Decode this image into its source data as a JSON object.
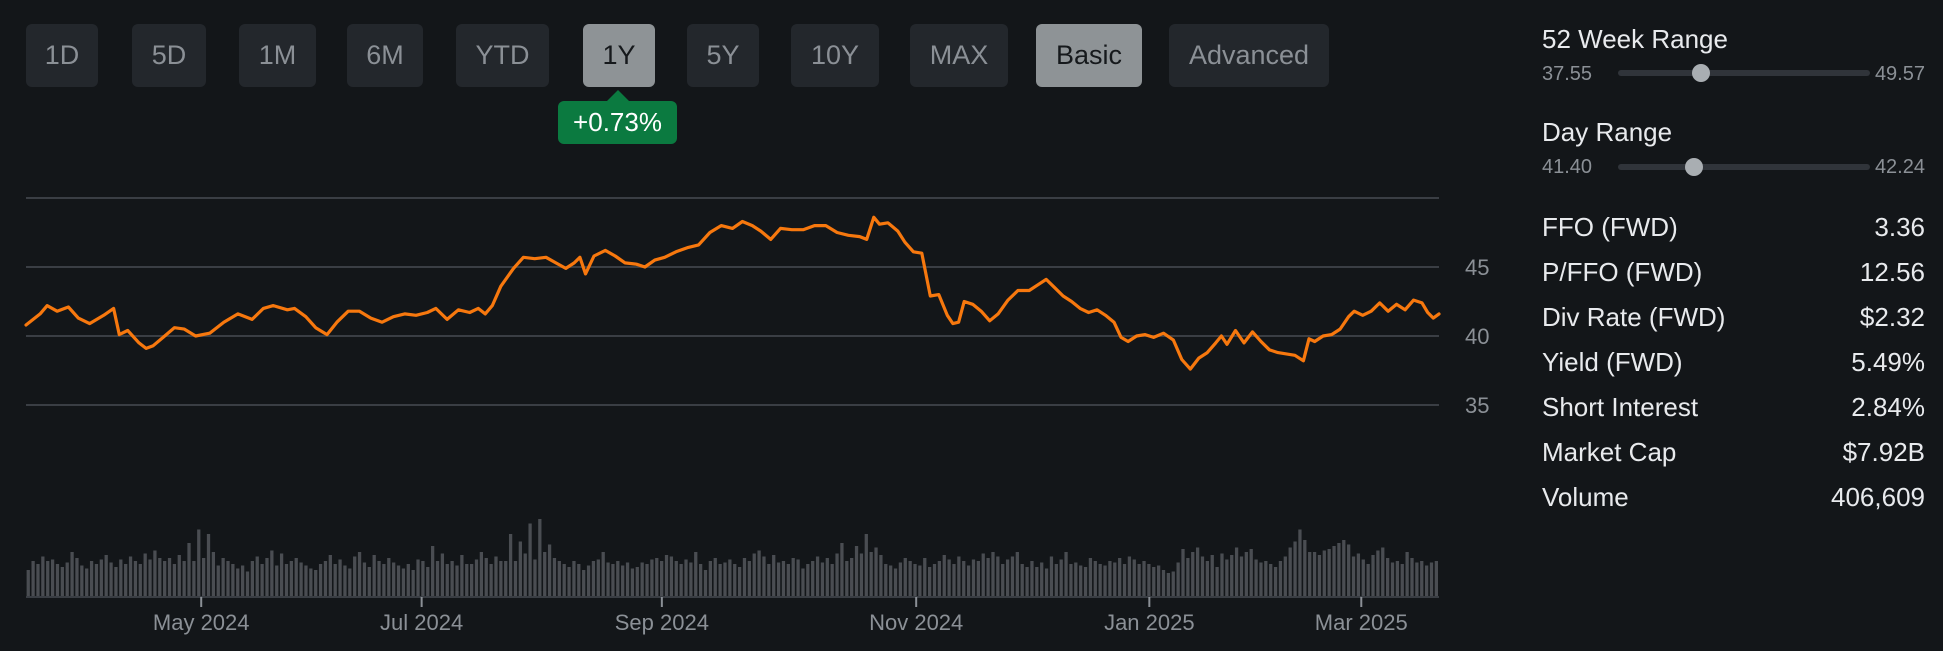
{
  "period_tabs": [
    {
      "label": "1D",
      "active": false
    },
    {
      "label": "5D",
      "active": false
    },
    {
      "label": "1M",
      "active": false
    },
    {
      "label": "6M",
      "active": false
    },
    {
      "label": "YTD",
      "active": false
    },
    {
      "label": "1Y",
      "active": true
    },
    {
      "label": "5Y",
      "active": false
    },
    {
      "label": "10Y",
      "active": false
    },
    {
      "label": "MAX",
      "active": false
    }
  ],
  "mode_tabs": [
    {
      "label": "Basic",
      "active": true
    },
    {
      "label": "Advanced",
      "active": false
    }
  ],
  "change_badge": "+0.73%",
  "colors": {
    "line": "#f7780e",
    "volume": "#4a4d52",
    "grid": "#3a3e44",
    "positive": "#0b7a40"
  },
  "week52": {
    "title": "52 Week Range",
    "low": "37.55",
    "high": "49.57",
    "position": 0.33
  },
  "day_range": {
    "title": "Day Range",
    "low": "41.40",
    "high": "42.24",
    "position": 0.3
  },
  "stats": [
    {
      "label": "FFO (FWD)",
      "value": "3.36"
    },
    {
      "label": "P/FFO (FWD)",
      "value": "12.56"
    },
    {
      "label": "Div Rate (FWD)",
      "value": "$2.32"
    },
    {
      "label": "Yield (FWD)",
      "value": "5.49%"
    },
    {
      "label": "Short Interest",
      "value": "2.84%"
    },
    {
      "label": "Market Cap",
      "value": "$7.92B"
    },
    {
      "label": "Volume",
      "value": "406,609"
    }
  ],
  "chart_data": {
    "type": "line",
    "y_ticks": [
      "45",
      "40",
      "35"
    ],
    "ylim": [
      30,
      50
    ],
    "x_ticks": [
      {
        "label": "May 2024",
        "x": 0.124
      },
      {
        "label": "Jul 2024",
        "x": 0.28
      },
      {
        "label": "Sep 2024",
        "x": 0.45
      },
      {
        "label": "Nov 2024",
        "x": 0.63
      },
      {
        "label": "Jan 2025",
        "x": 0.795
      },
      {
        "label": "Mar 2025",
        "x": 0.945
      }
    ],
    "grid": true,
    "price_series": [
      [
        0.0,
        40.8
      ],
      [
        0.01,
        41.6
      ],
      [
        0.015,
        42.2
      ],
      [
        0.022,
        41.8
      ],
      [
        0.03,
        42.1
      ],
      [
        0.037,
        41.3
      ],
      [
        0.045,
        40.9
      ],
      [
        0.055,
        41.5
      ],
      [
        0.062,
        42.0
      ],
      [
        0.066,
        40.1
      ],
      [
        0.072,
        40.4
      ],
      [
        0.08,
        39.5
      ],
      [
        0.085,
        39.1
      ],
      [
        0.09,
        39.3
      ],
      [
        0.097,
        39.9
      ],
      [
        0.105,
        40.6
      ],
      [
        0.112,
        40.5
      ],
      [
        0.12,
        40.0
      ],
      [
        0.13,
        40.2
      ],
      [
        0.14,
        41.0
      ],
      [
        0.15,
        41.6
      ],
      [
        0.16,
        41.2
      ],
      [
        0.168,
        42.0
      ],
      [
        0.175,
        42.2
      ],
      [
        0.185,
        41.9
      ],
      [
        0.19,
        42.0
      ],
      [
        0.198,
        41.4
      ],
      [
        0.205,
        40.6
      ],
      [
        0.213,
        40.1
      ],
      [
        0.22,
        41.0
      ],
      [
        0.228,
        41.8
      ],
      [
        0.236,
        41.8
      ],
      [
        0.244,
        41.3
      ],
      [
        0.252,
        41.0
      ],
      [
        0.26,
        41.4
      ],
      [
        0.268,
        41.6
      ],
      [
        0.276,
        41.5
      ],
      [
        0.284,
        41.7
      ],
      [
        0.29,
        42.0
      ],
      [
        0.298,
        41.2
      ],
      [
        0.306,
        41.9
      ],
      [
        0.314,
        41.7
      ],
      [
        0.32,
        42.0
      ],
      [
        0.325,
        41.6
      ],
      [
        0.33,
        42.2
      ],
      [
        0.336,
        43.6
      ],
      [
        0.345,
        44.9
      ],
      [
        0.352,
        45.7
      ],
      [
        0.36,
        45.6
      ],
      [
        0.368,
        45.7
      ],
      [
        0.375,
        45.3
      ],
      [
        0.382,
        44.9
      ],
      [
        0.388,
        45.3
      ],
      [
        0.392,
        45.7
      ],
      [
        0.396,
        44.5
      ],
      [
        0.402,
        45.8
      ],
      [
        0.41,
        46.2
      ],
      [
        0.417,
        45.8
      ],
      [
        0.424,
        45.3
      ],
      [
        0.432,
        45.2
      ],
      [
        0.438,
        45.0
      ],
      [
        0.445,
        45.5
      ],
      [
        0.452,
        45.7
      ],
      [
        0.46,
        46.1
      ],
      [
        0.468,
        46.4
      ],
      [
        0.476,
        46.6
      ],
      [
        0.484,
        47.5
      ],
      [
        0.492,
        48.0
      ],
      [
        0.5,
        47.8
      ],
      [
        0.507,
        48.3
      ],
      [
        0.514,
        48.0
      ],
      [
        0.52,
        47.6
      ],
      [
        0.527,
        47.0
      ],
      [
        0.534,
        47.8
      ],
      [
        0.542,
        47.7
      ],
      [
        0.55,
        47.7
      ],
      [
        0.558,
        48.0
      ],
      [
        0.566,
        48.0
      ],
      [
        0.574,
        47.5
      ],
      [
        0.582,
        47.3
      ],
      [
        0.59,
        47.2
      ],
      [
        0.595,
        47.0
      ],
      [
        0.6,
        48.6
      ],
      [
        0.604,
        48.1
      ],
      [
        0.61,
        48.2
      ],
      [
        0.617,
        47.6
      ],
      [
        0.622,
        46.8
      ],
      [
        0.628,
        46.1
      ],
      [
        0.634,
        46.0
      ],
      [
        0.64,
        42.9
      ],
      [
        0.646,
        43.0
      ],
      [
        0.652,
        41.5
      ],
      [
        0.656,
        40.9
      ],
      [
        0.66,
        41.0
      ],
      [
        0.664,
        42.5
      ],
      [
        0.67,
        42.3
      ],
      [
        0.676,
        41.8
      ],
      [
        0.682,
        41.1
      ],
      [
        0.688,
        41.6
      ],
      [
        0.695,
        42.6
      ],
      [
        0.702,
        43.3
      ],
      [
        0.71,
        43.3
      ],
      [
        0.716,
        43.7
      ],
      [
        0.722,
        44.1
      ],
      [
        0.728,
        43.5
      ],
      [
        0.734,
        42.9
      ],
      [
        0.74,
        42.5
      ],
      [
        0.746,
        42.0
      ],
      [
        0.752,
        41.7
      ],
      [
        0.758,
        41.9
      ],
      [
        0.764,
        41.5
      ],
      [
        0.77,
        41.0
      ],
      [
        0.775,
        39.9
      ],
      [
        0.78,
        39.6
      ],
      [
        0.786,
        40.0
      ],
      [
        0.792,
        40.1
      ],
      [
        0.798,
        39.9
      ],
      [
        0.805,
        40.2
      ],
      [
        0.812,
        39.7
      ],
      [
        0.818,
        38.3
      ],
      [
        0.824,
        37.6
      ],
      [
        0.83,
        38.4
      ],
      [
        0.836,
        38.8
      ],
      [
        0.842,
        39.5
      ],
      [
        0.846,
        40.0
      ],
      [
        0.85,
        39.4
      ],
      [
        0.856,
        40.4
      ],
      [
        0.862,
        39.5
      ],
      [
        0.868,
        40.3
      ],
      [
        0.874,
        39.6
      ],
      [
        0.88,
        39.0
      ],
      [
        0.886,
        38.8
      ],
      [
        0.892,
        38.7
      ],
      [
        0.898,
        38.6
      ],
      [
        0.904,
        38.2
      ],
      [
        0.908,
        39.8
      ],
      [
        0.912,
        39.6
      ],
      [
        0.918,
        40.0
      ],
      [
        0.924,
        40.1
      ],
      [
        0.93,
        40.5
      ],
      [
        0.936,
        41.4
      ],
      [
        0.94,
        41.8
      ],
      [
        0.946,
        41.5
      ],
      [
        0.952,
        41.8
      ],
      [
        0.958,
        42.4
      ],
      [
        0.964,
        41.8
      ],
      [
        0.97,
        42.3
      ],
      [
        0.976,
        41.9
      ],
      [
        0.982,
        42.6
      ],
      [
        0.988,
        42.4
      ],
      [
        0.992,
        41.7
      ],
      [
        0.996,
        41.3
      ],
      [
        1.0,
        41.6
      ]
    ],
    "volume_series": [
      0.18,
      0.24,
      0.22,
      0.27,
      0.24,
      0.25,
      0.22,
      0.2,
      0.23,
      0.3,
      0.26,
      0.21,
      0.19,
      0.24,
      0.22,
      0.25,
      0.28,
      0.23,
      0.2,
      0.25,
      0.22,
      0.27,
      0.24,
      0.22,
      0.29,
      0.25,
      0.31,
      0.26,
      0.24,
      0.26,
      0.22,
      0.28,
      0.24,
      0.36,
      0.24,
      0.45,
      0.26,
      0.42,
      0.3,
      0.21,
      0.26,
      0.24,
      0.22,
      0.19,
      0.21,
      0.17,
      0.24,
      0.27,
      0.22,
      0.26,
      0.31,
      0.21,
      0.29,
      0.22,
      0.24,
      0.26,
      0.23,
      0.21,
      0.19,
      0.18,
      0.22,
      0.24,
      0.28,
      0.22,
      0.25,
      0.21,
      0.19,
      0.27,
      0.3,
      0.23,
      0.2,
      0.28,
      0.24,
      0.22,
      0.26,
      0.23,
      0.21,
      0.19,
      0.22,
      0.18,
      0.25,
      0.24,
      0.2,
      0.34,
      0.24,
      0.29,
      0.22,
      0.24,
      0.21,
      0.28,
      0.22,
      0.22,
      0.25,
      0.3,
      0.26,
      0.22,
      0.27,
      0.24,
      0.24,
      0.42,
      0.24,
      0.37,
      0.29,
      0.49,
      0.25,
      0.52,
      0.3,
      0.35,
      0.26,
      0.24,
      0.22,
      0.2,
      0.24,
      0.22,
      0.18,
      0.21,
      0.24,
      0.25,
      0.3,
      0.23,
      0.22,
      0.24,
      0.21,
      0.23,
      0.19,
      0.2,
      0.23,
      0.22,
      0.25,
      0.26,
      0.24,
      0.28,
      0.27,
      0.24,
      0.22,
      0.25,
      0.23,
      0.3,
      0.22,
      0.18,
      0.24,
      0.26,
      0.22,
      0.23,
      0.25,
      0.22,
      0.2,
      0.26,
      0.24,
      0.29,
      0.31,
      0.27,
      0.22,
      0.28,
      0.23,
      0.24,
      0.22,
      0.26,
      0.25,
      0.19,
      0.22,
      0.24,
      0.27,
      0.23,
      0.26,
      0.22,
      0.29,
      0.36,
      0.24,
      0.26,
      0.34,
      0.29,
      0.42,
      0.3,
      0.33,
      0.28,
      0.22,
      0.21,
      0.19,
      0.23,
      0.26,
      0.24,
      0.22,
      0.21,
      0.26,
      0.2,
      0.22,
      0.24,
      0.28,
      0.25,
      0.22,
      0.27,
      0.24,
      0.21,
      0.25,
      0.24,
      0.29,
      0.26,
      0.3,
      0.27,
      0.22,
      0.25,
      0.27,
      0.3,
      0.22,
      0.2,
      0.24,
      0.2,
      0.23,
      0.19,
      0.27,
      0.22,
      0.25,
      0.3,
      0.22,
      0.23,
      0.21,
      0.2,
      0.26,
      0.24,
      0.22,
      0.21,
      0.24,
      0.23,
      0.26,
      0.22,
      0.27,
      0.25,
      0.22,
      0.24,
      0.22,
      0.2,
      0.21,
      0.18,
      0.16,
      0.17,
      0.23,
      0.32,
      0.26,
      0.3,
      0.33,
      0.27,
      0.24,
      0.28,
      0.2,
      0.29,
      0.25,
      0.28,
      0.33,
      0.27,
      0.3,
      0.32,
      0.25,
      0.23,
      0.24,
      0.22,
      0.2,
      0.24,
      0.27,
      0.33,
      0.37,
      0.45,
      0.38,
      0.3,
      0.3,
      0.28,
      0.31,
      0.32,
      0.34,
      0.36,
      0.38,
      0.35,
      0.27,
      0.29,
      0.25,
      0.22,
      0.28,
      0.31,
      0.33,
      0.26,
      0.23,
      0.24,
      0.22,
      0.3,
      0.26,
      0.23,
      0.24,
      0.21,
      0.23,
      0.24
    ]
  }
}
